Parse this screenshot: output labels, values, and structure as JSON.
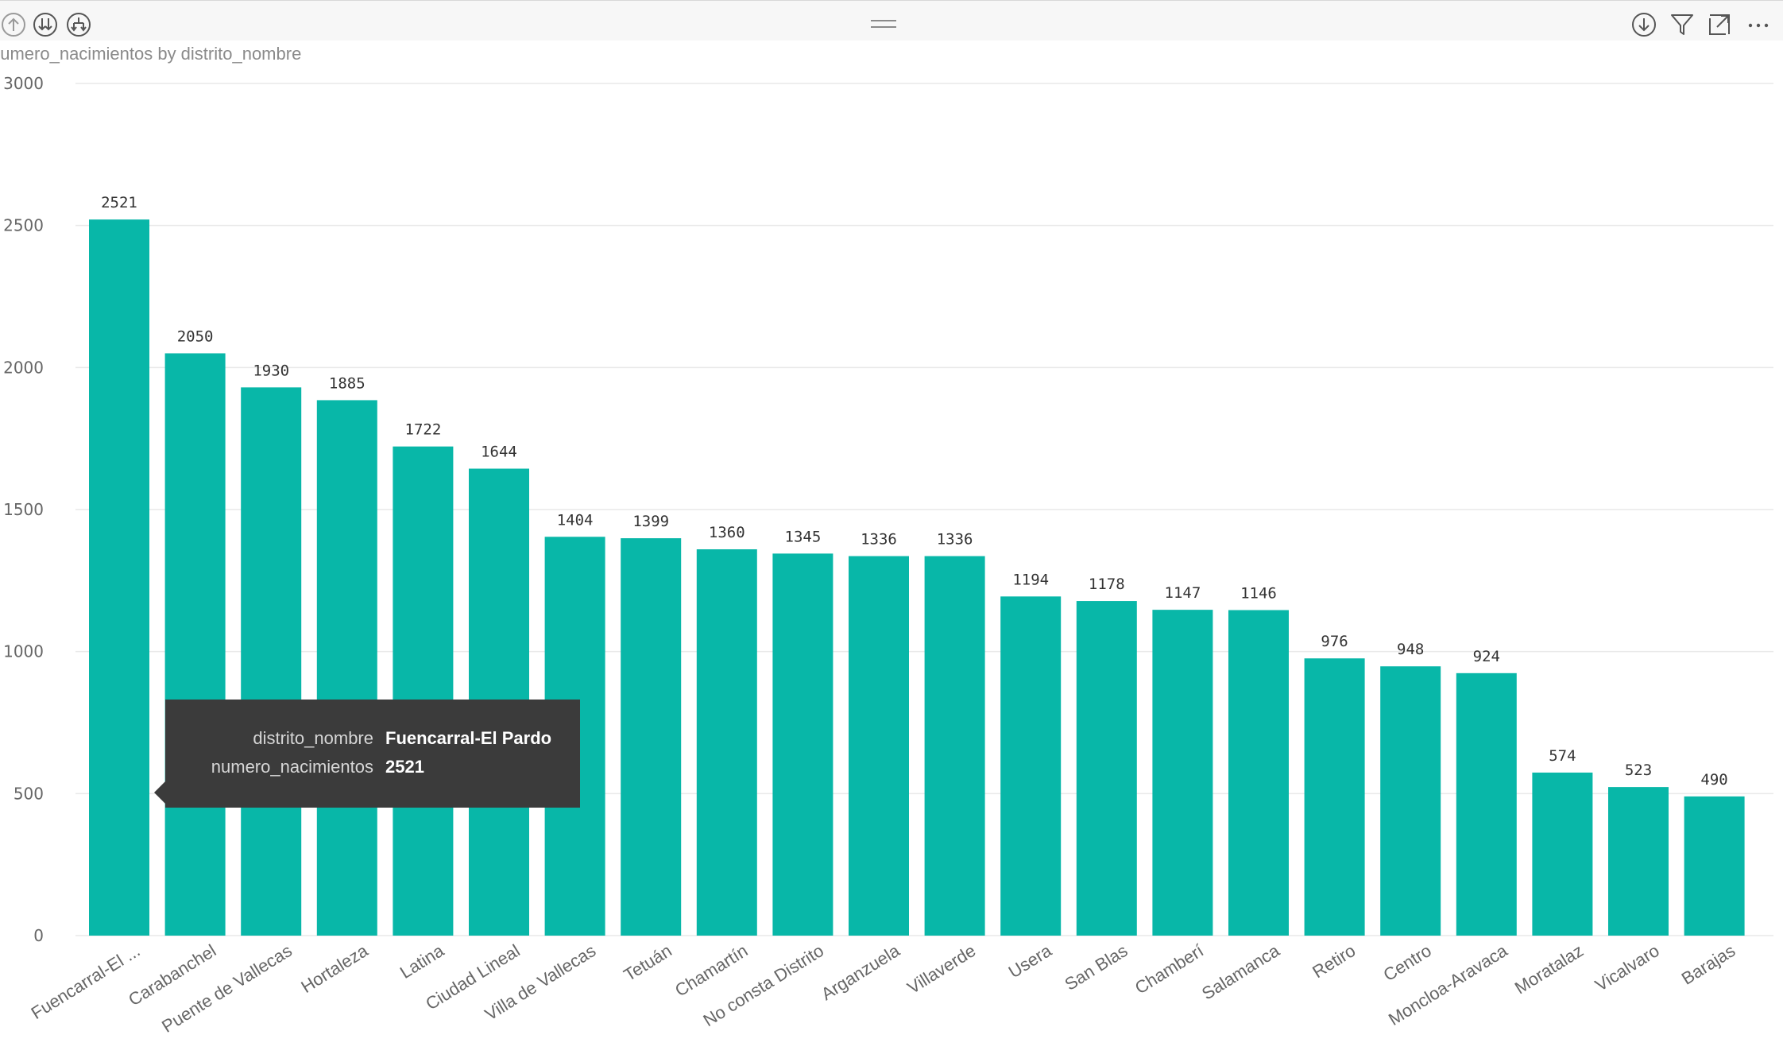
{
  "visual": {
    "title": "numero_nacimientos by distrito_nombre",
    "header_icons": {
      "drill_up": "arrow-up-circle-icon",
      "drill_down_next": "double-arrow-down-circle-icon",
      "expand_hierarchy": "fork-down-circle-icon",
      "drill_mode": "arrow-down-circle-icon",
      "filter": "filter-icon",
      "focus_mode": "expand-icon",
      "more_options": "more-options-icon"
    }
  },
  "colors": {
    "bar": "#08b7a8",
    "axis_text": "#666666",
    "grid": "#e9e9e9",
    "tooltip_bg": "#3b3b3b"
  },
  "chart_data": {
    "type": "bar",
    "title": "numero_nacimientos by distrito_nombre",
    "xlabel": "",
    "ylabel": "",
    "ylim": [
      0,
      3000
    ],
    "yticks": [
      0,
      500,
      1000,
      1500,
      2000,
      2500,
      3000
    ],
    "grid": true,
    "categories": [
      "Fuencarral-El ...",
      "Carabanchel",
      "Puente de Vallecas",
      "Hortaleza",
      "Latina",
      "Ciudad Lineal",
      "Villa de Vallecas",
      "Tetuán",
      "Chamartín",
      "No consta Distrito",
      "Arganzuela",
      "Villaverde",
      "Usera",
      "San Blas",
      "Chamberí",
      "Salamanca",
      "Retiro",
      "Centro",
      "Moncloa-Aravaca",
      "Moratalaz",
      "Vicalvaro",
      "Barajas"
    ],
    "values": [
      2521,
      2050,
      1930,
      1885,
      1722,
      1644,
      1404,
      1399,
      1360,
      1345,
      1336,
      1336,
      1194,
      1178,
      1147,
      1146,
      976,
      948,
      924,
      574,
      523,
      490
    ]
  },
  "tooltip": {
    "rows": [
      {
        "key": "distrito_nombre",
        "value": "Fuencarral-El Pardo"
      },
      {
        "key": "numero_nacimientos",
        "value": "2521"
      }
    ]
  }
}
